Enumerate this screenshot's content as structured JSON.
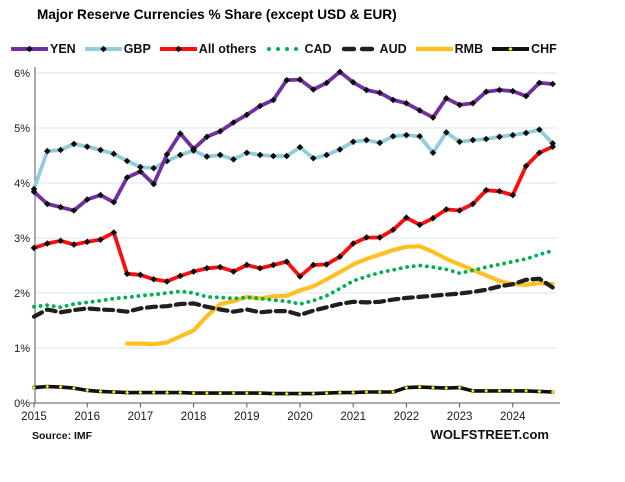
{
  "title": "Major Reserve Currencies % Share (except USD & EUR)",
  "source": "Source: IMF",
  "branding": "WOLFSTREET.com",
  "colors": {
    "grid": "#D7E4F1",
    "axis": "#595959",
    "tick_text": "#1a1a1a",
    "marker": "#0d0d0d",
    "chf_marker": "#FFF200"
  },
  "chart_data": {
    "type": "line",
    "title": "Major Reserve Currencies % Share (except USD & EUR)",
    "x_unit": "quarter",
    "x_start": "2015Q1",
    "x_end": "2024Q4",
    "x_tick_labels": [
      "2015",
      "2016",
      "2017",
      "2018",
      "2019",
      "2020",
      "2021",
      "2022",
      "2023",
      "2024"
    ],
    "y_tick_labels": [
      "0%",
      "1%",
      "2%",
      "3%",
      "4%",
      "5%",
      "6%"
    ],
    "ylim": [
      0,
      6
    ],
    "grid": true,
    "legend_position": "top",
    "series": [
      {
        "name": "YEN",
        "color": "#7030A0",
        "style": "solid-diamond",
        "start_index": 0,
        "values": [
          3.84,
          3.62,
          3.56,
          3.5,
          3.7,
          3.78,
          3.65,
          4.1,
          4.21,
          3.98,
          4.52,
          4.9,
          4.62,
          4.84,
          4.94,
          5.1,
          5.24,
          5.4,
          5.51,
          5.87,
          5.88,
          5.7,
          5.82,
          6.02,
          5.83,
          5.69,
          5.64,
          5.51,
          5.45,
          5.32,
          5.19,
          5.54,
          5.42,
          5.45,
          5.66,
          5.69,
          5.67,
          5.58,
          5.82,
          5.8
        ]
      },
      {
        "name": "GBP",
        "color": "#92CDDC",
        "style": "solid-diamond",
        "start_index": 0,
        "values": [
          3.89,
          4.58,
          4.6,
          4.71,
          4.66,
          4.6,
          4.53,
          4.4,
          4.29,
          4.27,
          4.4,
          4.51,
          4.59,
          4.48,
          4.51,
          4.43,
          4.55,
          4.51,
          4.49,
          4.49,
          4.65,
          4.45,
          4.51,
          4.61,
          4.75,
          4.78,
          4.73,
          4.85,
          4.87,
          4.85,
          4.55,
          4.92,
          4.75,
          4.78,
          4.8,
          4.84,
          4.87,
          4.91,
          4.97,
          4.72
        ]
      },
      {
        "name": "All others",
        "color": "#FF0D0D",
        "style": "solid-diamond",
        "start_index": 0,
        "values": [
          2.82,
          2.9,
          2.95,
          2.88,
          2.93,
          2.97,
          3.1,
          2.35,
          2.33,
          2.25,
          2.21,
          2.31,
          2.39,
          2.45,
          2.47,
          2.39,
          2.51,
          2.45,
          2.51,
          2.57,
          2.3,
          2.51,
          2.52,
          2.66,
          2.9,
          3.01,
          3.01,
          3.15,
          3.37,
          3.24,
          3.36,
          3.52,
          3.5,
          3.62,
          3.87,
          3.85,
          3.78,
          4.31,
          4.55,
          4.66
        ]
      },
      {
        "name": "CAD",
        "color": "#00B050",
        "style": "dotted",
        "start_index": 0,
        "values": [
          1.75,
          1.78,
          1.74,
          1.8,
          1.83,
          1.86,
          1.9,
          1.92,
          1.95,
          1.97,
          2.0,
          2.03,
          2.0,
          1.93,
          1.92,
          1.9,
          1.92,
          1.9,
          1.87,
          1.85,
          1.8,
          1.86,
          1.95,
          2.08,
          2.22,
          2.3,
          2.37,
          2.42,
          2.47,
          2.5,
          2.47,
          2.43,
          2.36,
          2.41,
          2.47,
          2.52,
          2.57,
          2.62,
          2.7,
          2.77
        ]
      },
      {
        "name": "AUD",
        "color": "#1f1f1f",
        "style": "dashed",
        "start_index": 0,
        "values": [
          1.57,
          1.7,
          1.65,
          1.69,
          1.72,
          1.7,
          1.69,
          1.66,
          1.72,
          1.75,
          1.76,
          1.8,
          1.81,
          1.75,
          1.7,
          1.66,
          1.7,
          1.65,
          1.67,
          1.67,
          1.6,
          1.68,
          1.74,
          1.8,
          1.84,
          1.83,
          1.84,
          1.88,
          1.91,
          1.93,
          1.95,
          1.97,
          1.99,
          2.02,
          2.06,
          2.12,
          2.16,
          2.24,
          2.26,
          2.1
        ]
      },
      {
        "name": "RMB",
        "color": "#FFC023",
        "style": "solid",
        "start_index": 7,
        "values": [
          1.08,
          1.08,
          1.07,
          1.1,
          1.21,
          1.32,
          1.58,
          1.8,
          1.85,
          1.93,
          1.9,
          1.94,
          1.95,
          2.05,
          2.12,
          2.25,
          2.38,
          2.52,
          2.62,
          2.7,
          2.78,
          2.84,
          2.85,
          2.75,
          2.62,
          2.52,
          2.42,
          2.32,
          2.22,
          2.16,
          2.15,
          2.18,
          2.16
        ]
      },
      {
        "name": "CHF",
        "color": "#111111",
        "style": "solid-yellow-diamond",
        "start_index": 0,
        "values": [
          0.28,
          0.3,
          0.29,
          0.27,
          0.23,
          0.21,
          0.2,
          0.19,
          0.19,
          0.19,
          0.19,
          0.19,
          0.18,
          0.18,
          0.18,
          0.18,
          0.18,
          0.18,
          0.17,
          0.17,
          0.17,
          0.17,
          0.18,
          0.19,
          0.19,
          0.2,
          0.2,
          0.2,
          0.28,
          0.29,
          0.28,
          0.27,
          0.28,
          0.22,
          0.22,
          0.22,
          0.22,
          0.22,
          0.21,
          0.2
        ]
      }
    ]
  }
}
